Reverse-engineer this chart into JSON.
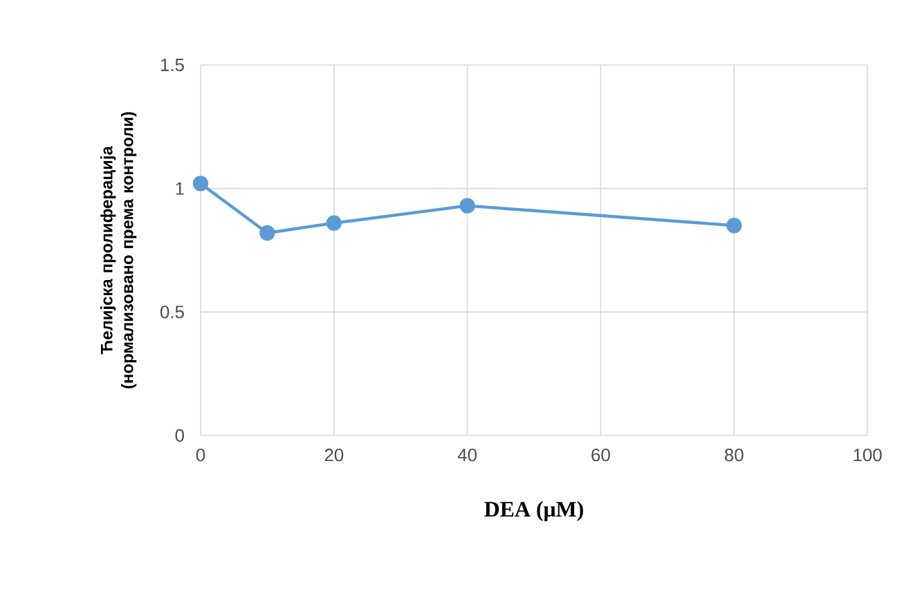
{
  "chart_data": {
    "type": "line",
    "xlabel": "DEA (μM)",
    "ylabel": "Ћелијска пролиферација (нормализовано према контроли)",
    "x": [
      0,
      10,
      20,
      40,
      80
    ],
    "series": [
      {
        "color": "#5b9bd5",
        "values": [
          1.02,
          0.82,
          0.86,
          0.93,
          0.85
        ]
      }
    ],
    "xlim": [
      0,
      100
    ],
    "xticks": [
      0,
      20,
      40,
      60,
      80,
      100
    ],
    "ylim": [
      0,
      1.5
    ],
    "yticks": [
      0,
      0.5,
      1,
      1.5
    ],
    "grid": true,
    "marker": "circle",
    "line_style": "solid"
  }
}
